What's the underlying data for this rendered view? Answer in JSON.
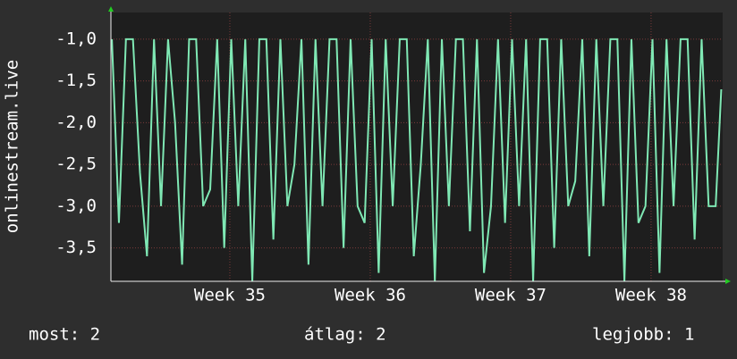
{
  "chart_data": {
    "type": "line",
    "y_label": "onlinestream.live",
    "xlim": [
      34.153,
      38.51
    ],
    "xticks": [
      {
        "value": 35,
        "label": "Week 35"
      },
      {
        "value": 36,
        "label": "Week 36"
      },
      {
        "value": 37,
        "label": "Week 37"
      },
      {
        "value": 38,
        "label": "Week 38"
      }
    ],
    "ylim": [
      -3.9,
      -0.68
    ],
    "yticks": [
      {
        "value": -1,
        "label": "-1,0"
      },
      {
        "value": -1.5,
        "label": "-1,5"
      },
      {
        "value": -2,
        "label": "-2,0"
      },
      {
        "value": -2.5,
        "label": "-2,5"
      },
      {
        "value": -3,
        "label": "-3,0"
      },
      {
        "value": -3.5,
        "label": "-3,5"
      }
    ],
    "grid": true,
    "x": [
      34.16,
      34.21,
      34.26,
      34.31,
      34.36,
      34.41,
      34.46,
      34.51,
      34.56,
      34.61,
      34.66,
      34.71,
      34.76,
      34.81,
      34.86,
      34.91,
      34.96,
      35.01,
      35.06,
      35.11,
      35.16,
      35.21,
      35.26,
      35.31,
      35.36,
      35.41,
      35.46,
      35.51,
      35.56,
      35.61,
      35.66,
      35.71,
      35.76,
      35.81,
      35.86,
      35.91,
      35.96,
      36.01,
      36.06,
      36.11,
      36.16,
      36.21,
      36.26,
      36.31,
      36.36,
      36.41,
      36.46,
      36.51,
      36.56,
      36.61,
      36.66,
      36.71,
      36.76,
      36.81,
      36.86,
      36.91,
      36.96,
      37.01,
      37.06,
      37.11,
      37.16,
      37.21,
      37.26,
      37.31,
      37.36,
      37.41,
      37.46,
      37.51,
      37.56,
      37.61,
      37.66,
      37.71,
      37.76,
      37.81,
      37.86,
      37.91,
      37.96,
      38.01,
      38.06,
      38.11,
      38.16,
      38.21,
      38.26,
      38.31,
      38.36,
      38.41,
      38.46,
      38.5
    ],
    "series": [
      {
        "color": "#7fe8b4",
        "values": [
          -1,
          -3.2,
          -1,
          -1,
          -2.6,
          -3.6,
          -1,
          -3,
          -1,
          -2,
          -3.7,
          -1,
          -1,
          -3,
          -2.8,
          -1,
          -3.5,
          -1,
          -3,
          -1,
          -3.9,
          -1,
          -1,
          -3.4,
          -1,
          -3,
          -2.5,
          -1,
          -3.7,
          -1,
          -3,
          -1,
          -1,
          -3.5,
          -1,
          -3,
          -3.2,
          -1,
          -3.8,
          -1,
          -3,
          -1,
          -1,
          -3.6,
          -2.5,
          -1,
          -3.9,
          -1,
          -3,
          -1,
          -1,
          -3.3,
          -1,
          -3.8,
          -3,
          -1,
          -3.2,
          -1,
          -3,
          -1,
          -3.9,
          -1,
          -1,
          -3.5,
          -1,
          -3,
          -2.7,
          -1,
          -3.6,
          -1,
          -3,
          -1,
          -1,
          -3.9,
          -1,
          -3.2,
          -3,
          -1,
          -3.8,
          -1,
          -3,
          -1,
          -1,
          -3.4,
          -1,
          -3,
          -3,
          -1.6
        ]
      }
    ],
    "stats": [
      "most: 2",
      "átlag: 2",
      "legjobb: 1"
    ]
  }
}
